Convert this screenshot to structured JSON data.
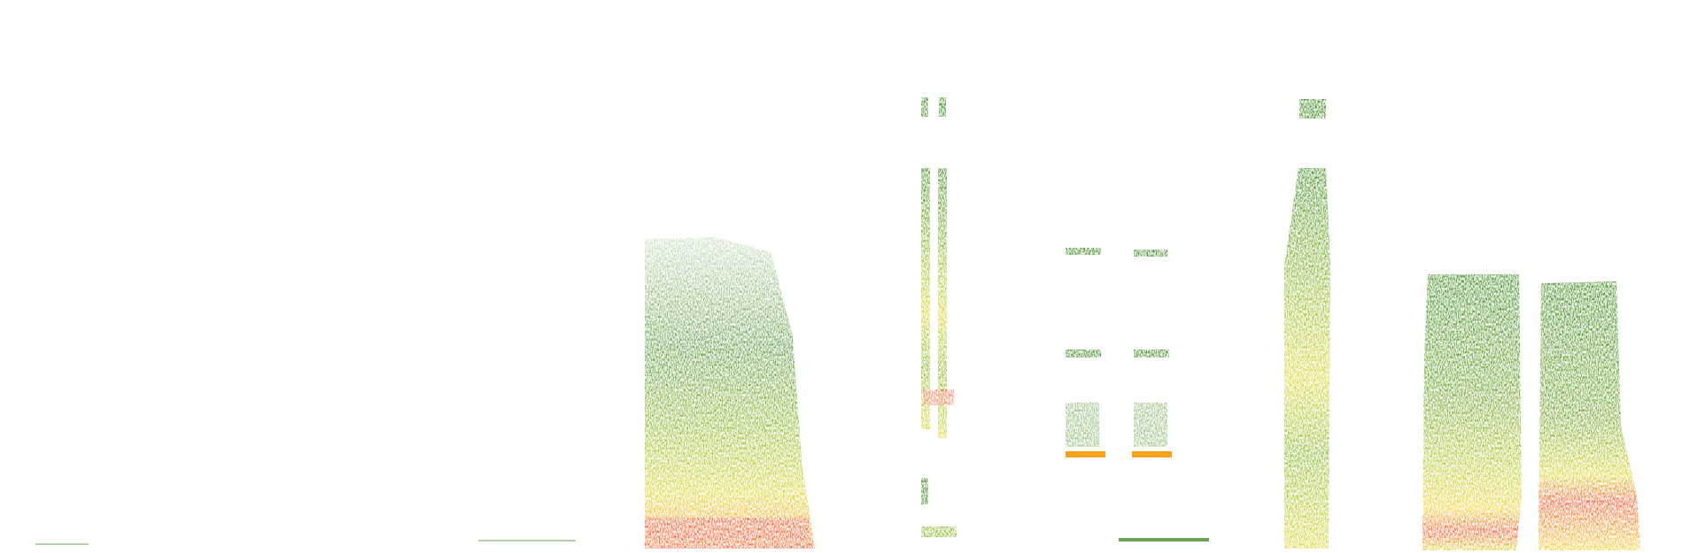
{
  "image": {
    "kind": "spectrogram",
    "background": "#ffffff",
    "palette": {
      "low": "#2e7d0f",
      "mid_low": "#7fb21a",
      "mid": "#d9d21c",
      "high": "#f6a21a",
      "peak": "#ee4a1e"
    },
    "sound_events": [
      {
        "name": "broadband-burst",
        "shape": "block"
      },
      {
        "name": "double-click-trains",
        "shape": "twin-columns"
      },
      {
        "name": "paired-tonal-pulses",
        "shape": "twin-bands"
      },
      {
        "name": "narrow-column-call",
        "shape": "column"
      },
      {
        "name": "paired-broadband-calls",
        "shape": "twin-blocks"
      }
    ]
  }
}
